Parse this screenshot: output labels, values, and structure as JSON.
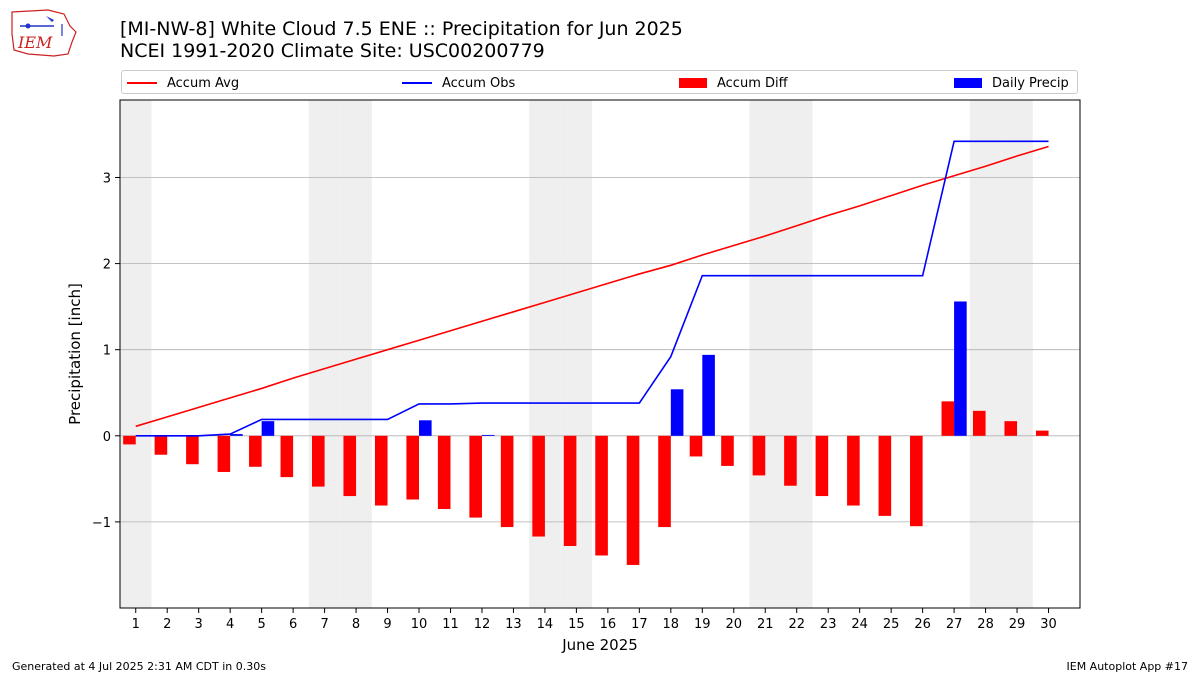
{
  "header": {
    "logo_text": "IEM",
    "title_line1": "[MI-NW-8] White Cloud 7.5 ENE :: Precipitation for Jun 2025",
    "title_line2": "NCEI 1991-2020 Climate Site: USC00200779"
  },
  "footer": {
    "left": "Generated at 4 Jul 2025 2:31 AM CDT in 0.30s",
    "right": "IEM Autoplot App #17"
  },
  "colors": {
    "avg": "#ff0000",
    "obs": "#0000ff",
    "diff": "#ff0000",
    "daily": "#0000ff",
    "weekend_band": "#efefef",
    "grid": "#b0b0b0"
  },
  "chart_data": {
    "type": "bar",
    "xlabel": "June 2025",
    "ylabel": "Precipitation [inch]",
    "ylim": [
      -2.0,
      3.9
    ],
    "xlim": [
      0.5,
      31.0
    ],
    "yticks": [
      -1,
      0,
      1,
      2,
      3
    ],
    "ytick_labels": [
      "−1",
      "0",
      "1",
      "2",
      "3"
    ],
    "x": [
      1,
      2,
      3,
      4,
      5,
      6,
      7,
      8,
      9,
      10,
      11,
      12,
      13,
      14,
      15,
      16,
      17,
      18,
      19,
      20,
      21,
      22,
      23,
      24,
      25,
      26,
      27,
      28,
      29,
      30
    ],
    "grid": "horizontal",
    "legend_position": "top",
    "shaded_weekend_days": [
      1,
      7,
      8,
      14,
      15,
      21,
      22,
      28,
      29
    ],
    "series": [
      {
        "name": "Accum Avg",
        "kind": "line",
        "values": [
          0.11,
          0.22,
          0.33,
          0.44,
          0.55,
          0.67,
          0.78,
          0.89,
          1.0,
          1.11,
          1.22,
          1.33,
          1.44,
          1.55,
          1.66,
          1.77,
          1.88,
          1.98,
          2.1,
          2.21,
          2.32,
          2.44,
          2.56,
          2.67,
          2.79,
          2.91,
          3.02,
          3.13,
          3.25,
          3.36
        ]
      },
      {
        "name": "Accum Obs",
        "kind": "line",
        "values": [
          0.0,
          0.0,
          0.0,
          0.02,
          0.19,
          0.19,
          0.19,
          0.19,
          0.19,
          0.37,
          0.37,
          0.38,
          0.38,
          0.38,
          0.38,
          0.38,
          0.38,
          0.92,
          1.86,
          1.86,
          1.86,
          1.86,
          1.86,
          1.86,
          1.86,
          1.86,
          3.42,
          3.42,
          3.42,
          3.42
        ]
      },
      {
        "name": "Accum Diff",
        "kind": "bar",
        "values": [
          -0.1,
          -0.22,
          -0.33,
          -0.42,
          -0.36,
          -0.48,
          -0.59,
          -0.7,
          -0.81,
          -0.74,
          -0.85,
          -0.95,
          -1.06,
          -1.17,
          -1.28,
          -1.39,
          -1.5,
          -1.06,
          -0.24,
          -0.35,
          -0.46,
          -0.58,
          -0.7,
          -0.81,
          -0.93,
          -1.05,
          0.4,
          0.29,
          0.17,
          0.06
        ]
      },
      {
        "name": "Daily Precip",
        "kind": "bar",
        "values": [
          0.0,
          0.0,
          0.0,
          0.02,
          0.17,
          0.0,
          0.0,
          0.0,
          0.0,
          0.18,
          0.0,
          0.01,
          0.0,
          0.0,
          0.0,
          0.0,
          0.0,
          0.54,
          0.94,
          0.0,
          0.0,
          0.0,
          0.0,
          0.0,
          0.0,
          0.0,
          1.56,
          0.0,
          0.0,
          0.0
        ]
      }
    ]
  }
}
